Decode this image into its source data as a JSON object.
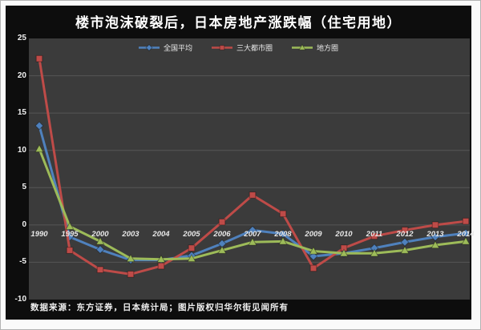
{
  "title": "楼市泡沫破裂后，日本房地产涨跌幅（住宅用地）",
  "source_note": "数据来源：东方证券，日本统计局；图片版权归华尔街见闻所有",
  "colors": {
    "frame": "#fafafa",
    "panel_background": "#0d0d0d",
    "plot_background": "#3b3b3b",
    "gridline": "#565656",
    "text": "#f0f0f0",
    "series_national": "#4f81bd",
    "series_metro": "#be4b48",
    "series_regional": "#9dbb59"
  },
  "chart_data": {
    "type": "line",
    "title": "楼市泡沫破裂后，日本房地产涨跌幅（住宅用地）",
    "xlabel": "",
    "ylabel": "",
    "ylim": [
      -10,
      25
    ],
    "yticks": [
      25,
      20,
      15,
      10,
      5,
      0,
      -5,
      -10
    ],
    "grid": true,
    "legend_position": "top-center",
    "categories": [
      "1990",
      "1995",
      "2000",
      "2003",
      "2004",
      "2005",
      "2006",
      "2007",
      "2008",
      "2009",
      "2010",
      "2011",
      "2012",
      "2013",
      "2014"
    ],
    "series": [
      {
        "name": "全国平均",
        "key": "national-average",
        "color": "#4f81bd",
        "marker": "diamond",
        "values": [
          13.3,
          -1.6,
          -3.3,
          -4.7,
          -4.7,
          -4.1,
          -2.5,
          -0.7,
          -1.2,
          -4.2,
          -3.8,
          -3.1,
          -2.3,
          -1.6,
          -1.1
        ]
      },
      {
        "name": "三大都市圈",
        "key": "three-metro-areas",
        "color": "#be4b48",
        "marker": "square",
        "values": [
          22.3,
          -3.4,
          -6.0,
          -6.6,
          -5.5,
          -3.1,
          0.4,
          4.0,
          1.5,
          -5.8,
          -3.1,
          -1.5,
          -0.7,
          0.0,
          0.5
        ]
      },
      {
        "name": "地方圈",
        "key": "regional-areas",
        "color": "#9dbb59",
        "marker": "triangle",
        "values": [
          10.2,
          -0.2,
          -2.2,
          -4.5,
          -4.6,
          -4.5,
          -3.4,
          -2.3,
          -2.2,
          -3.5,
          -3.8,
          -3.8,
          -3.4,
          -2.7,
          -2.2
        ]
      }
    ]
  }
}
